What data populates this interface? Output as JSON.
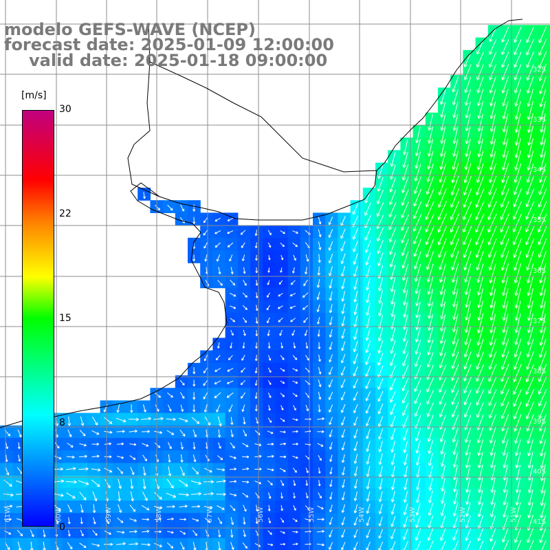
{
  "title": {
    "line1": "modelo GEFS-WAVE (NCEP)",
    "line2": "forecast date: 2025-01-09 12:00:00",
    "line3": "valid date: 2025-01-18 09:00:00"
  },
  "colorbar": {
    "unit": "[m/s]",
    "min": 0,
    "max": 30,
    "ticks": [
      "30",
      "22",
      "15",
      "8",
      "0"
    ],
    "tick_values": [
      30,
      22,
      15,
      8,
      0
    ],
    "colors": [
      "#0000ff",
      "#00ffff",
      "#00ff00",
      "#ffff00",
      "#ff8000",
      "#ff0000",
      "#c0007f"
    ]
  },
  "map": {
    "variable": "wind speed",
    "lat_labels": [
      "32S",
      "33S",
      "34S",
      "35S",
      "36S",
      "37S",
      "38S",
      "39S",
      "40S",
      "41S"
    ],
    "lon_labels": [
      "61W",
      "60W",
      "59W",
      "58W",
      "57W",
      "56W",
      "55W",
      "54W",
      "53W",
      "52W",
      "51W"
    ],
    "land_color": "#ffffff",
    "grid_color": "#8c8c8c",
    "arrow_color": "#ffffff"
  }
}
